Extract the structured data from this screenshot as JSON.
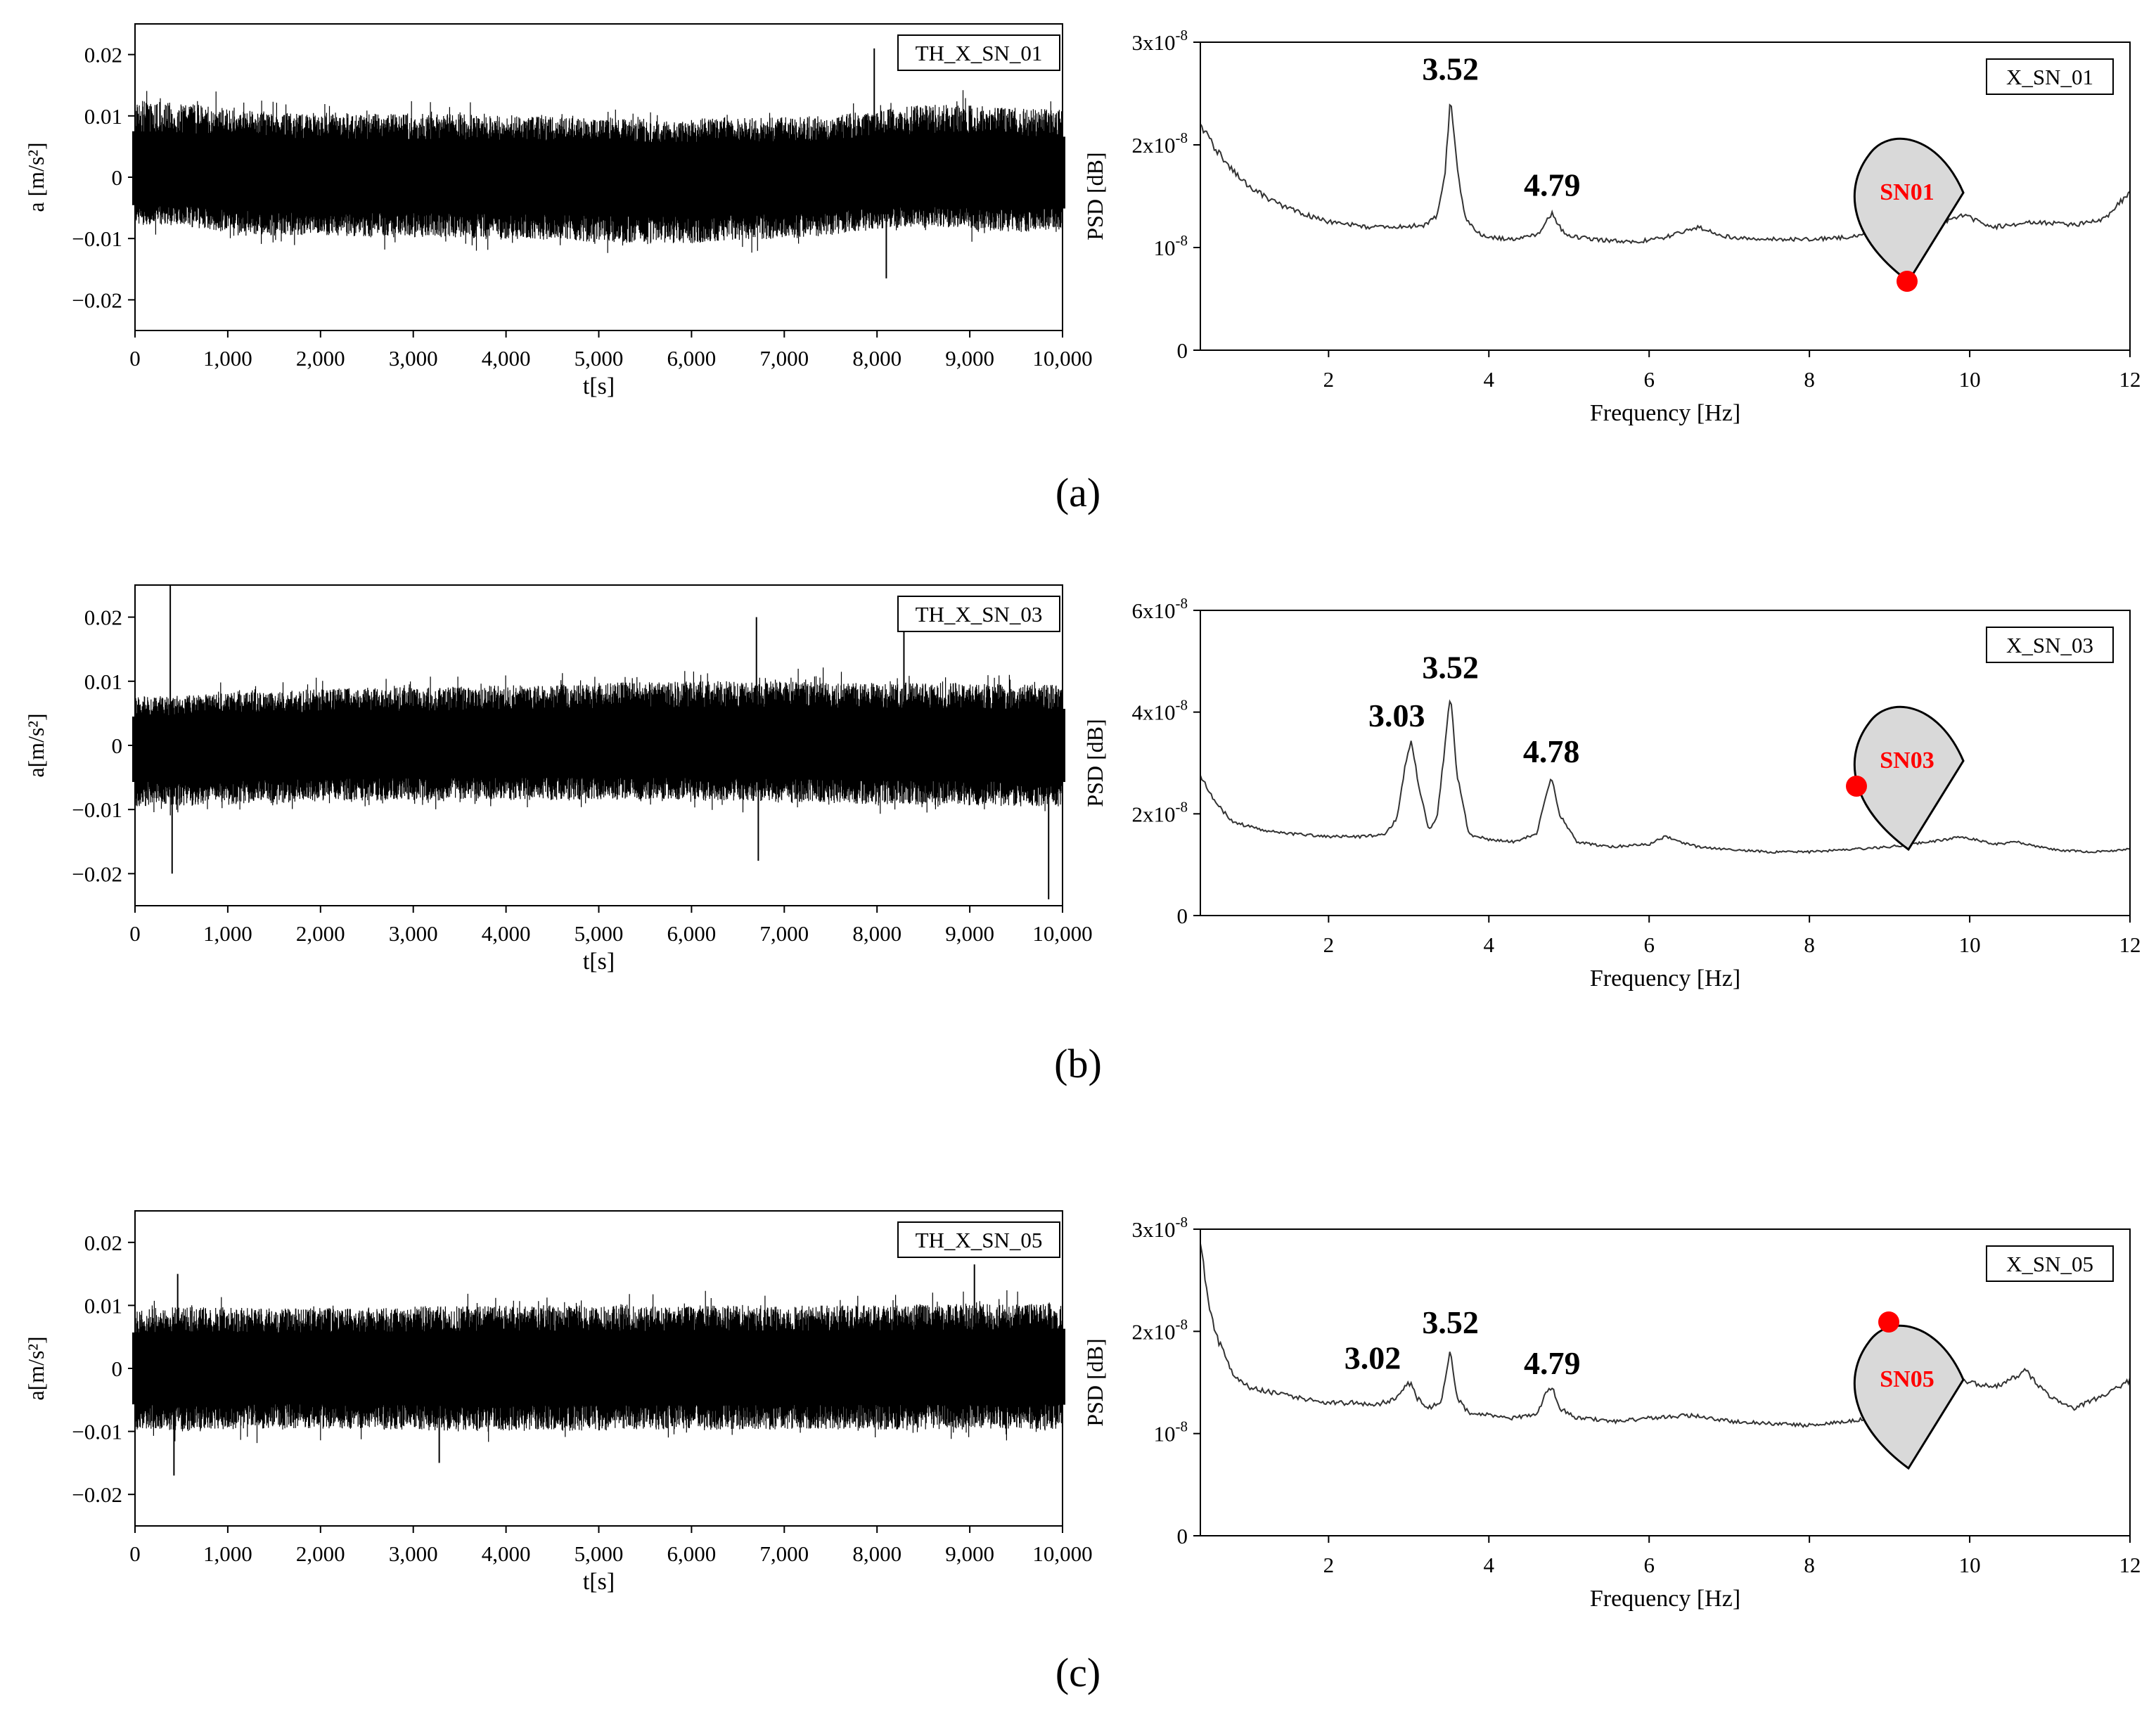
{
  "colors": {
    "signal": "#000000",
    "psd_line": "#333333",
    "sensor_fill": "#d9d9d9",
    "sensor_dot": "#ff0000",
    "sensor_label": "#ff0000"
  },
  "panel_labels": [
    "(a)",
    "(b)",
    "(c)"
  ],
  "chart_data": [
    {
      "type": "line",
      "panel": "(a)",
      "name": "time-history",
      "legend": "TH_X_SN_01",
      "xlabel": "t[s]",
      "ylabel": "a [m/s²]",
      "xlim": [
        0,
        10000
      ],
      "ylim": [
        -0.025,
        0.025
      ],
      "xticks": [
        0,
        1000,
        2000,
        3000,
        4000,
        5000,
        6000,
        7000,
        8000,
        9000,
        10000
      ],
      "xtick_labels": [
        "0",
        "1,000",
        "2,000",
        "3,000",
        "4,000",
        "5,000",
        "6,000",
        "7,000",
        "8,000",
        "9,000",
        "10,000"
      ],
      "yticks": [
        -0.02,
        -0.01,
        0,
        0.01,
        0.02
      ],
      "ytick_labels": [
        "−0.02",
        "−0.01",
        "0",
        "0.01",
        "0.02"
      ],
      "envelope": {
        "x": [
          0,
          500,
          1000,
          1500,
          2000,
          2500,
          3000,
          3500,
          4000,
          4500,
          5000,
          5500,
          6000,
          6500,
          7000,
          7500,
          8000,
          8500,
          9000,
          9500,
          10000
        ],
        "upper": [
          0.0125,
          0.0122,
          0.0112,
          0.0106,
          0.0107,
          0.0104,
          0.0104,
          0.0103,
          0.0102,
          0.01,
          0.0098,
          0.0096,
          0.0096,
          0.0097,
          0.0098,
          0.01,
          0.011,
          0.0118,
          0.0118,
          0.0113,
          0.011
        ],
        "lower": [
          -0.0076,
          -0.0079,
          -0.009,
          -0.0095,
          -0.0095,
          -0.0098,
          -0.0098,
          -0.01,
          -0.0101,
          -0.0103,
          -0.0106,
          -0.0108,
          -0.0108,
          -0.0104,
          -0.01,
          -0.0095,
          -0.0085,
          -0.008,
          -0.0085,
          -0.009,
          -0.0085
        ]
      },
      "spikes": [
        [
          8100,
          -0.0165
        ],
        [
          7970,
          0.021
        ],
        [
          8120,
          0.011
        ]
      ]
    },
    {
      "type": "line",
      "panel": "(a)",
      "name": "psd",
      "legend": "X_SN_01",
      "xlabel": "Frequency [Hz]",
      "ylabel": "PSD [dB]",
      "xlim": [
        0.4,
        12
      ],
      "ylim": [
        0,
        3e-08
      ],
      "xticks": [
        2,
        4,
        6,
        8,
        10,
        12
      ],
      "xtick_labels": [
        "2",
        "4",
        "6",
        "8",
        "10",
        "12"
      ],
      "yticks": [
        0,
        1e-08,
        2e-08,
        3e-08
      ],
      "ytick_base": [
        "0",
        "10",
        "2x10",
        "3x10"
      ],
      "ytick_exp": [
        "",
        "-8",
        "-8",
        "-8"
      ],
      "x": [
        0.4,
        0.6,
        0.8,
        1.0,
        1.3,
        1.6,
        2.0,
        2.5,
        2.9,
        3.2,
        3.35,
        3.45,
        3.52,
        3.6,
        3.7,
        3.85,
        4.0,
        4.3,
        4.6,
        4.79,
        4.95,
        5.3,
        5.8,
        6.2,
        6.6,
        7.0,
        7.5,
        8.0,
        8.5,
        9.0,
        9.5,
        9.9,
        10.3,
        10.8,
        11.3,
        11.7,
        12.0
      ],
      "y": [
        2.2e-08,
        1.95e-08,
        1.75e-08,
        1.6e-08,
        1.45e-08,
        1.35e-08,
        1.25e-08,
        1.2e-08,
        1.2e-08,
        1.22e-08,
        1.3e-08,
        1.7e-08,
        2.45e-08,
        1.8e-08,
        1.3e-08,
        1.15e-08,
        1.1e-08,
        1.08e-08,
        1.12e-08,
        1.33e-08,
        1.12e-08,
        1.08e-08,
        1.05e-08,
        1.1e-08,
        1.2e-08,
        1.1e-08,
        1.08e-08,
        1.08e-08,
        1.1e-08,
        1.15e-08,
        1.2e-08,
        1.32e-08,
        1.2e-08,
        1.25e-08,
        1.22e-08,
        1.28e-08,
        1.55e-08
      ],
      "annotations": [
        {
          "text": "3.52",
          "x": 3.52,
          "y": 2.55e-08
        },
        {
          "text": "4.79",
          "x": 4.79,
          "y": 1.42e-08
        }
      ],
      "sensor": {
        "label": "SN01",
        "dot": "bottom"
      }
    },
    {
      "type": "line",
      "panel": "(b)",
      "name": "time-history",
      "legend": "TH_X_SN_03",
      "xlabel": "t[s]",
      "ylabel": "a[m/s²]",
      "xlim": [
        0,
        10000
      ],
      "ylim": [
        -0.025,
        0.025
      ],
      "xticks": [
        0,
        1000,
        2000,
        3000,
        4000,
        5000,
        6000,
        7000,
        8000,
        9000,
        10000
      ],
      "xtick_labels": [
        "0",
        "1,000",
        "2,000",
        "3,000",
        "4,000",
        "5,000",
        "6,000",
        "7,000",
        "8,000",
        "9,000",
        "10,000"
      ],
      "yticks": [
        -0.02,
        -0.01,
        0,
        0.01,
        0.02
      ],
      "ytick_labels": [
        "−0.02",
        "−0.01",
        "0",
        "0.01",
        "0.02"
      ],
      "envelope": {
        "x": [
          0,
          500,
          1000,
          1500,
          2000,
          2500,
          3000,
          3500,
          4000,
          4500,
          5000,
          5500,
          6000,
          6500,
          7000,
          7500,
          8000,
          8500,
          9000,
          9500,
          10000
        ],
        "upper": [
          0.0075,
          0.0078,
          0.0082,
          0.0085,
          0.0088,
          0.009,
          0.009,
          0.0092,
          0.0094,
          0.0095,
          0.0097,
          0.0099,
          0.01,
          0.01,
          0.01,
          0.0098,
          0.0098,
          0.0098,
          0.0097,
          0.0095,
          0.0095
        ],
        "lower": [
          -0.0095,
          -0.0095,
          -0.0092,
          -0.009,
          -0.0088,
          -0.0086,
          -0.0086,
          -0.0085,
          -0.0085,
          -0.0085,
          -0.0085,
          -0.0085,
          -0.0085,
          -0.0087,
          -0.0088,
          -0.009,
          -0.0092,
          -0.0093,
          -0.0094,
          -0.0095,
          -0.0095
        ]
      },
      "spikes": [
        [
          380,
          0.025
        ],
        [
          400,
          -0.02
        ],
        [
          6700,
          0.02
        ],
        [
          6720,
          -0.018
        ],
        [
          9850,
          -0.024
        ],
        [
          8290,
          0.019
        ]
      ]
    },
    {
      "type": "line",
      "panel": "(b)",
      "name": "psd",
      "legend": "X_SN_03",
      "xlabel": "Frequency [Hz]",
      "ylabel": "PSD [dB]",
      "xlim": [
        0.4,
        12
      ],
      "ylim": [
        0,
        6e-08
      ],
      "xticks": [
        2,
        4,
        6,
        8,
        10,
        12
      ],
      "xtick_labels": [
        "2",
        "4",
        "6",
        "8",
        "10",
        "12"
      ],
      "yticks": [
        0,
        2e-08,
        4e-08,
        6e-08
      ],
      "ytick_base": [
        "0",
        "2x10",
        "4x10",
        "6x10"
      ],
      "ytick_exp": [
        "",
        "-8",
        "-8",
        "-8"
      ],
      "x": [
        0.4,
        0.6,
        0.8,
        1.0,
        1.3,
        1.6,
        2.0,
        2.4,
        2.7,
        2.85,
        2.95,
        3.03,
        3.12,
        3.25,
        3.35,
        3.45,
        3.52,
        3.6,
        3.75,
        4.0,
        4.3,
        4.6,
        4.7,
        4.78,
        4.88,
        5.1,
        5.5,
        6.0,
        6.2,
        6.6,
        7.0,
        7.5,
        8.0,
        8.5,
        9.0,
        9.5,
        9.9,
        10.3,
        10.6,
        11.0,
        11.5,
        12.0
      ],
      "y": [
        2.75e-08,
        2.2e-08,
        1.85e-08,
        1.75e-08,
        1.65e-08,
        1.6e-08,
        1.55e-08,
        1.55e-08,
        1.6e-08,
        1.9e-08,
        2.9e-08,
        3.45e-08,
        2.6e-08,
        1.7e-08,
        1.9e-08,
        3.3e-08,
        4.4e-08,
        2.8e-08,
        1.6e-08,
        1.5e-08,
        1.45e-08,
        1.6e-08,
        2.3e-08,
        2.75e-08,
        2e-08,
        1.45e-08,
        1.35e-08,
        1.4e-08,
        1.55e-08,
        1.35e-08,
        1.3e-08,
        1.25e-08,
        1.25e-08,
        1.3e-08,
        1.35e-08,
        1.45e-08,
        1.55e-08,
        1.4e-08,
        1.45e-08,
        1.3e-08,
        1.25e-08,
        1.3e-08
      ],
      "annotations": [
        {
          "text": "3.03",
          "x": 2.85,
          "y": 3.55e-08
        },
        {
          "text": "3.52",
          "x": 3.52,
          "y": 4.5e-08
        },
        {
          "text": "4.78",
          "x": 4.78,
          "y": 2.85e-08
        }
      ],
      "sensor": {
        "label": "SN03",
        "dot": "left"
      }
    },
    {
      "type": "line",
      "panel": "(c)",
      "name": "time-history",
      "legend": "TH_X_SN_05",
      "xlabel": "t[s]",
      "ylabel": "a[m/s²]",
      "xlim": [
        0,
        10000
      ],
      "ylim": [
        -0.025,
        0.025
      ],
      "xticks": [
        0,
        1000,
        2000,
        3000,
        4000,
        5000,
        6000,
        7000,
        8000,
        9000,
        10000
      ],
      "xtick_labels": [
        "0",
        "1,000",
        "2,000",
        "3,000",
        "4,000",
        "5,000",
        "6,000",
        "7,000",
        "8,000",
        "9,000",
        "10,000"
      ],
      "yticks": [
        -0.02,
        -0.01,
        0,
        0.01,
        0.02
      ],
      "ytick_labels": [
        "−0.02",
        "−0.01",
        "0",
        "0.01",
        "0.02"
      ],
      "envelope": {
        "x": [
          0,
          500,
          1000,
          1500,
          2000,
          2500,
          3000,
          3500,
          4000,
          4500,
          5000,
          5500,
          6000,
          6500,
          7000,
          7500,
          8000,
          8500,
          9000,
          9500,
          10000
        ],
        "upper": [
          0.0095,
          0.0098,
          0.0097,
          0.0095,
          0.0096,
          0.0097,
          0.0098,
          0.0099,
          0.01,
          0.01,
          0.01,
          0.0099,
          0.01,
          0.0101,
          0.01,
          0.01,
          0.0101,
          0.0102,
          0.0103,
          0.0104,
          0.0105
        ],
        "lower": [
          -0.0095,
          -0.01,
          -0.0097,
          -0.0095,
          -0.0096,
          -0.0097,
          -0.0098,
          -0.01,
          -0.01,
          -0.0099,
          -0.0099,
          -0.0098,
          -0.0098,
          -0.0098,
          -0.0097,
          -0.0097,
          -0.0097,
          -0.0097,
          -0.0097,
          -0.0096,
          -0.0096
        ]
      },
      "spikes": [
        [
          420,
          -0.017
        ],
        [
          460,
          0.015
        ],
        [
          3280,
          -0.015
        ],
        [
          9050,
          0.0165
        ]
      ]
    },
    {
      "type": "line",
      "panel": "(c)",
      "name": "psd",
      "legend": "X_SN_05",
      "xlabel": "Frequency [Hz]",
      "ylabel": "PSD [dB]",
      "xlim": [
        0.4,
        12
      ],
      "ylim": [
        0,
        3e-08
      ],
      "xticks": [
        2,
        4,
        6,
        8,
        10,
        12
      ],
      "xtick_labels": [
        "2",
        "4",
        "6",
        "8",
        "10",
        "12"
      ],
      "yticks": [
        0,
        1e-08,
        2e-08,
        3e-08
      ],
      "ytick_base": [
        "0",
        "10",
        "2x10",
        "3x10"
      ],
      "ytick_exp": [
        "",
        "-8",
        "-8",
        "-8"
      ],
      "x": [
        0.4,
        0.5,
        0.6,
        0.8,
        1.0,
        1.3,
        1.6,
        2.0,
        2.3,
        2.6,
        2.85,
        2.95,
        3.02,
        3.1,
        3.25,
        3.4,
        3.47,
        3.52,
        3.6,
        3.75,
        4.0,
        4.3,
        4.6,
        4.72,
        4.79,
        4.88,
        5.1,
        5.6,
        6.0,
        6.5,
        7.0,
        7.5,
        8.0,
        8.5,
        9.0,
        9.4,
        9.7,
        10.0,
        10.3,
        10.5,
        10.7,
        11.0,
        11.3,
        11.6,
        12.0
      ],
      "y": [
        2.85e-08,
        2.3e-08,
        1.95e-08,
        1.6e-08,
        1.45e-08,
        1.4e-08,
        1.35e-08,
        1.3e-08,
        1.3e-08,
        1.28e-08,
        1.35e-08,
        1.45e-08,
        1.5e-08,
        1.35e-08,
        1.25e-08,
        1.3e-08,
        1.6e-08,
        1.85e-08,
        1.35e-08,
        1.2e-08,
        1.18e-08,
        1.15e-08,
        1.2e-08,
        1.4e-08,
        1.45e-08,
        1.25e-08,
        1.15e-08,
        1.12e-08,
        1.15e-08,
        1.18e-08,
        1.12e-08,
        1.1e-08,
        1.08e-08,
        1.12e-08,
        1.2e-08,
        1.35e-08,
        1.55e-08,
        1.5e-08,
        1.45e-08,
        1.52e-08,
        1.62e-08,
        1.35e-08,
        1.25e-08,
        1.35e-08,
        1.52e-08
      ],
      "annotations": [
        {
          "text": "3.02",
          "x": 2.55,
          "y": 1.55e-08
        },
        {
          "text": "3.52",
          "x": 3.52,
          "y": 1.9e-08
        },
        {
          "text": "4.79",
          "x": 4.79,
          "y": 1.5e-08
        }
      ],
      "sensor": {
        "label": "SN05",
        "dot": "top"
      }
    }
  ]
}
